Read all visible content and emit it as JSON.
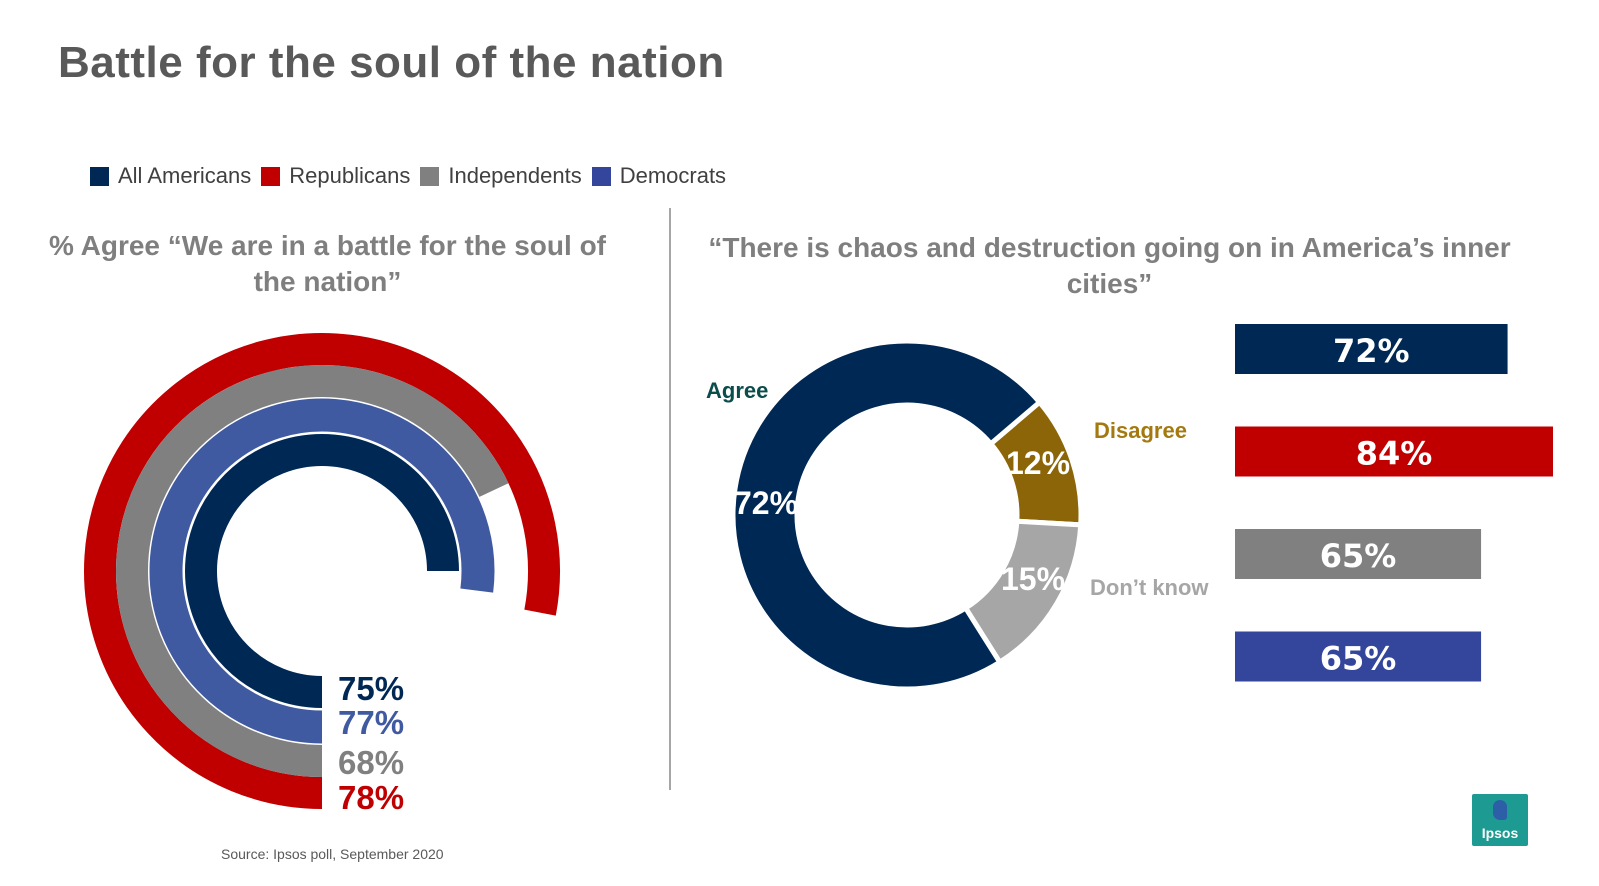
{
  "title": "Battle for the soul of the nation",
  "legend": {
    "items": [
      {
        "label": "All Americans",
        "color": "#002855"
      },
      {
        "label": "Republicans",
        "color": "#c00000"
      },
      {
        "label": "Independents",
        "color": "#808080"
      },
      {
        "label": "Democrats",
        "color": "#33469b"
      }
    ]
  },
  "source": "Source: Ipsos poll, September 2020",
  "logo": {
    "text": "Ipsos"
  },
  "chart_data": [
    {
      "type": "radial-bar",
      "title": "% Agree “We are in a battle for the soul of the nation”",
      "series": [
        {
          "name": "Republicans",
          "value": 78,
          "label": "78%",
          "color": "#c00000"
        },
        {
          "name": "Independents",
          "value": 68,
          "label": "68%",
          "color": "#808080"
        },
        {
          "name": "Democrats",
          "value": 77,
          "label": "77%",
          "color": "#3f5aa0"
        },
        {
          "name": "All Americans",
          "value": 75,
          "label": "75%",
          "color": "#002855"
        }
      ]
    },
    {
      "type": "pie",
      "title": "“There is chaos and destruction going on in America’s inner cities”",
      "slices": [
        {
          "name": "Agree",
          "value": 72,
          "label": "72%",
          "color": "#002855",
          "name_color": "#0b4d4a"
        },
        {
          "name": "Disagree",
          "value": 12,
          "label": "12%",
          "color": "#8c6508",
          "name_color": "#a47a10"
        },
        {
          "name": "Don’t know",
          "value": 15,
          "label": "15%",
          "color": "#a6a6a6",
          "name_color": "#a6a6a6"
        }
      ]
    },
    {
      "type": "bar",
      "orientation": "horizontal",
      "categories": [
        "All Americans",
        "Republicans",
        "Independents",
        "Democrats"
      ],
      "values": [
        72,
        84,
        65,
        65
      ],
      "labels": [
        "72%",
        "84%",
        "65%",
        "65%"
      ],
      "colors": [
        "#002855",
        "#c00000",
        "#808080",
        "#33469b"
      ]
    }
  ]
}
